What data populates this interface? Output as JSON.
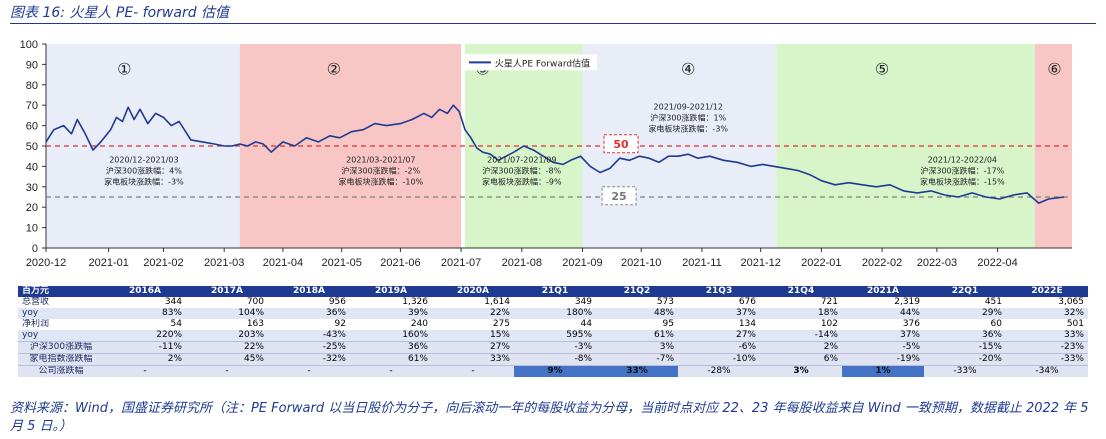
{
  "figure": {
    "title": "图表 16:  火星人 PE- forward 估值",
    "source": "资料来源：Wind，国盛证券研究所（注：PE Forward 以当日股价为分子，向后滚动一年的每股收益为分母，当前时点对应 22、23 年每股收益来自 Wind 一致预期，数据截止 2022 年 5 月 5 日。）"
  },
  "colors": {
    "line": "#1f3a93",
    "band_blue": "#e8edf8",
    "band_red": "#f9c6c6",
    "band_green": "#d8f5c9",
    "ref50": "#e03030",
    "ref25": "#808080",
    "table_header": "#1f3a93",
    "highlight": "#4472c4"
  },
  "chart_data": {
    "type": "line",
    "title": "",
    "xlabel": "",
    "ylabel": "",
    "ylim": [
      0,
      100
    ],
    "yticks": [
      0,
      10,
      20,
      30,
      40,
      50,
      60,
      70,
      80,
      90,
      100
    ],
    "grid": false,
    "legend_position": "top-center",
    "x_tick_labels": [
      "2020-12",
      "2021-01",
      "2021-02",
      "2021-03",
      "2021-04",
      "2021-05",
      "2021-06",
      "2021-07",
      "2021-08",
      "2021-09",
      "2021-10",
      "2021-11",
      "2021-12",
      "2022-01",
      "2022-02",
      "2022-03",
      "2022-04"
    ],
    "series": [
      {
        "name": "火星人PE Forward估值",
        "x": [
          "2020-12-01",
          "2020-12-05",
          "2020-12-10",
          "2020-12-14",
          "2020-12-17",
          "2020-12-21",
          "2020-12-25",
          "2020-12-29",
          "2021-01-03",
          "2021-01-06",
          "2021-01-09",
          "2021-01-12",
          "2021-01-15",
          "2021-01-18",
          "2021-01-22",
          "2021-01-26",
          "2021-01-30",
          "2021-02-03",
          "2021-02-07",
          "2021-02-13",
          "2021-02-19",
          "2021-02-25",
          "2021-03-02",
          "2021-03-06",
          "2021-03-10",
          "2021-03-14",
          "2021-03-18",
          "2021-03-22",
          "2021-03-26",
          "2021-04-01",
          "2021-04-07",
          "2021-04-13",
          "2021-04-19",
          "2021-04-25",
          "2021-04-30",
          "2021-05-06",
          "2021-05-12",
          "2021-05-18",
          "2021-05-24",
          "2021-05-31",
          "2021-06-06",
          "2021-06-12",
          "2021-06-16",
          "2021-06-20",
          "2021-06-24",
          "2021-06-27",
          "2021-06-30",
          "2021-07-03",
          "2021-07-06",
          "2021-07-09",
          "2021-07-12",
          "2021-07-16",
          "2021-07-20",
          "2021-07-24",
          "2021-07-28",
          "2021-08-02",
          "2021-08-07",
          "2021-08-12",
          "2021-08-17",
          "2021-08-22",
          "2021-08-26",
          "2021-08-31",
          "2021-09-05",
          "2021-09-10",
          "2021-09-15",
          "2021-09-20",
          "2021-09-25",
          "2021-09-30",
          "2021-10-05",
          "2021-10-10",
          "2021-10-15",
          "2021-10-20",
          "2021-10-25",
          "2021-10-30",
          "2021-11-05",
          "2021-11-12",
          "2021-11-19",
          "2021-11-26",
          "2021-12-02",
          "2021-12-08",
          "2021-12-14",
          "2021-12-20",
          "2021-12-26",
          "2022-01-01",
          "2022-01-08",
          "2022-01-15",
          "2022-01-22",
          "2022-01-29",
          "2022-02-05",
          "2022-02-12",
          "2022-02-19",
          "2022-02-26",
          "2022-03-05",
          "2022-03-12",
          "2022-03-19",
          "2022-03-26",
          "2022-04-02",
          "2022-04-09",
          "2022-04-16",
          "2022-04-22",
          "2022-04-27",
          "2022-05-05"
        ],
        "y": [
          52,
          58,
          60,
          56,
          63,
          56,
          48,
          52,
          58,
          64,
          62,
          69,
          63,
          68,
          61,
          66,
          64,
          60,
          62,
          53,
          52,
          51,
          50,
          50,
          51,
          50,
          52,
          51,
          47,
          52,
          50,
          54,
          52,
          55,
          54,
          57,
          58,
          61,
          60,
          61,
          63,
          66,
          64,
          68,
          66,
          70,
          67,
          58,
          54,
          49,
          47,
          46,
          43,
          45,
          47,
          50,
          48,
          45,
          42,
          41,
          43,
          45,
          40,
          37,
          39,
          44,
          43,
          45,
          44,
          42,
          45,
          45,
          46,
          44,
          45,
          43,
          42,
          40,
          41,
          40,
          39,
          38,
          36,
          33,
          31,
          32,
          31,
          30,
          31,
          28,
          27,
          28,
          26,
          25,
          27,
          25,
          24,
          26,
          27,
          22,
          24,
          25
        ]
      }
    ],
    "reference_lines": [
      {
        "value": 50,
        "label": "50"
      },
      {
        "value": 25,
        "label": "25"
      }
    ],
    "periods": [
      {
        "id": "①",
        "start": "2020-12-01",
        "end": "2021-03-10",
        "color": "band_blue",
        "title": "2020/12-2021/03",
        "hs300": "沪深300涨跌幅：4%",
        "sector": "家电板块涨跌幅：-3%"
      },
      {
        "id": "②",
        "start": "2021-03-10",
        "end": "2021-07-01",
        "color": "band_red",
        "title": "2021/03-2021/07",
        "hs300": "沪深300涨跌幅：-2%",
        "sector": "家电板块涨跌幅：-10%"
      },
      {
        "id": "③",
        "start": "2021-07-03",
        "end": "2021-09-01",
        "color": "band_green",
        "title": "2021/07-2021/09",
        "hs300": "沪深300涨跌幅：-8%",
        "sector": "家电板块涨跌幅：-9%"
      },
      {
        "id": "④",
        "start": "2021-09-01",
        "end": "2021-12-09",
        "color": "band_blue",
        "title": "2021/09-2021/12",
        "hs300": "沪深300涨跌幅：1%",
        "sector": "家电板块涨跌幅：-3%"
      },
      {
        "id": "⑤",
        "start": "2021-12-09",
        "end": "2022-04-20",
        "color": "band_green",
        "title": "2021/12-2022/04",
        "hs300": "沪深300涨跌幅：-17%",
        "sector": "家电板块涨跌幅：-15%"
      },
      {
        "id": "⑥",
        "start": "2022-04-20",
        "end": "2022-05-09",
        "color": "band_red",
        "title": "",
        "hs300": "",
        "sector": ""
      }
    ]
  },
  "table": {
    "corner": "百万元",
    "columns": [
      "2016A",
      "2017A",
      "2018A",
      "2019A",
      "2020A",
      "21Q1",
      "21Q2",
      "21Q3",
      "21Q4",
      "2021A",
      "22Q1",
      "2022E"
    ],
    "rows": [
      {
        "label": "总营收",
        "cells": [
          "344",
          "700",
          "956",
          "1,326",
          "1,614",
          "349",
          "573",
          "676",
          "721",
          "2,319",
          "451",
          "3,065"
        ]
      },
      {
        "label": "yoy",
        "cells": [
          "83%",
          "104%",
          "36%",
          "39%",
          "22%",
          "180%",
          "48%",
          "37%",
          "18%",
          "44%",
          "29%",
          "32%"
        ]
      },
      {
        "label": "净利润",
        "cells": [
          "54",
          "163",
          "92",
          "240",
          "275",
          "44",
          "95",
          "134",
          "102",
          "376",
          "60",
          "501"
        ]
      },
      {
        "label": "yoy",
        "cells": [
          "220%",
          "203%",
          "-43%",
          "160%",
          "15%",
          "595%",
          "61%",
          "27%",
          "-14%",
          "37%",
          "36%",
          "33%"
        ]
      },
      {
        "label": "沪深300涨跌幅",
        "cells": [
          "-11%",
          "22%",
          "-25%",
          "36%",
          "27%",
          "-3%",
          "3%",
          "-6%",
          "2%",
          "-5%",
          "-15%",
          "-23%"
        ]
      },
      {
        "label": "家电指数涨跌幅",
        "cells": [
          "2%",
          "45%",
          "-32%",
          "61%",
          "33%",
          "-8%",
          "-7%",
          "-10%",
          "6%",
          "-19%",
          "-20%",
          "-33%"
        ]
      },
      {
        "label": "公司涨跌幅",
        "cells": [
          "-",
          "-",
          "-",
          "-",
          "-",
          "9%",
          "33%",
          "-28%",
          "3%",
          "1%",
          "-33%",
          "-34%"
        ],
        "highlight": [
          5,
          6,
          9
        ],
        "bold": [
          8
        ]
      }
    ]
  }
}
